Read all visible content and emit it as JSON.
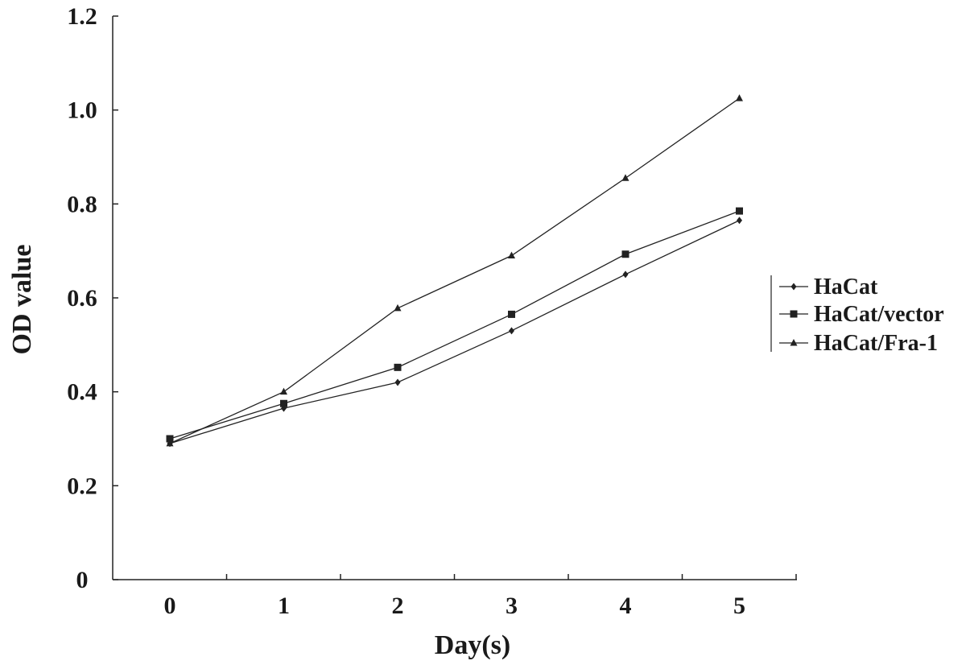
{
  "chart_data": {
    "type": "line",
    "title": "",
    "xlabel": "Day(s)",
    "ylabel": "OD value",
    "x": [
      0,
      1,
      2,
      3,
      4,
      5
    ],
    "x_tick_labels": [
      "0",
      "1",
      "2",
      "3",
      "4",
      "5"
    ],
    "y_tick_labels": [
      "0",
      "0.2",
      "0.4",
      "0.6",
      "0.8",
      "1.0",
      "1.2"
    ],
    "y_ticks": [
      0,
      0.2,
      0.4,
      0.6,
      0.8,
      1.0,
      1.2
    ],
    "ylim": [
      0,
      1.2
    ],
    "grid": false,
    "legend_position": "right",
    "series": [
      {
        "name": "HaCat",
        "marker": "diamond",
        "color": "#222222",
        "values": [
          0.29,
          0.365,
          0.42,
          0.53,
          0.65,
          0.765
        ]
      },
      {
        "name": "HaCat/vector",
        "marker": "square",
        "color": "#222222",
        "values": [
          0.3,
          0.375,
          0.452,
          0.565,
          0.693,
          0.785
        ]
      },
      {
        "name": "HaCat/Fra-1",
        "marker": "triangle",
        "color": "#222222",
        "values": [
          0.29,
          0.4,
          0.578,
          0.69,
          0.855,
          1.025
        ]
      }
    ]
  }
}
